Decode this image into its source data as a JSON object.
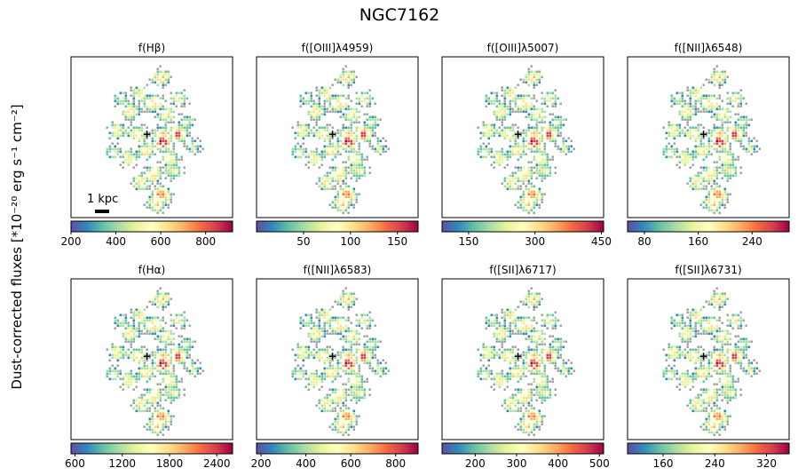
{
  "figure": {
    "title": "NGC7162",
    "ylabel": "Dust-corrected fluxes [*10⁻²⁰ erg s⁻¹ cm⁻²]",
    "scalebar_label": "1 kpc",
    "center_marker": "+"
  },
  "chart_data": [
    {
      "type": "heatmap",
      "title": "f(Hβ)",
      "colormap": "Spectral_r",
      "clim": [
        200,
        920
      ],
      "ticks": [
        200,
        400,
        600,
        800
      ],
      "tick_labels": [
        "200",
        "400",
        "600",
        "800"
      ]
    },
    {
      "type": "heatmap",
      "title": "f([OIII]λ4959)",
      "colormap": "Spectral_r",
      "clim": [
        0,
        172
      ],
      "ticks": [
        50,
        100,
        150
      ],
      "tick_labels": [
        "50",
        "100",
        "150"
      ]
    },
    {
      "type": "heatmap",
      "title": "f([OIII]λ5007)",
      "colormap": "Spectral_r",
      "clim": [
        90,
        455
      ],
      "ticks": [
        150,
        300,
        450
      ],
      "tick_labels": [
        "150",
        "300",
        "450"
      ]
    },
    {
      "type": "heatmap",
      "title": "f([NII]λ6548)",
      "colormap": "Spectral_r",
      "clim": [
        55,
        295
      ],
      "ticks": [
        80,
        160,
        240
      ],
      "tick_labels": [
        "80",
        "160",
        "240"
      ]
    },
    {
      "type": "heatmap",
      "title": "f(Hα)",
      "colormap": "Spectral_r",
      "clim": [
        550,
        2600
      ],
      "ticks": [
        600,
        1200,
        1800,
        2400
      ],
      "tick_labels": [
        "600",
        "1200",
        "1800",
        "2400"
      ]
    },
    {
      "type": "heatmap",
      "title": "f([NII]λ6583)",
      "colormap": "Spectral_r",
      "clim": [
        180,
        900
      ],
      "ticks": [
        200,
        400,
        600,
        800
      ],
      "tick_labels": [
        "200",
        "400",
        "600",
        "800"
      ]
    },
    {
      "type": "heatmap",
      "title": "f([SII]λ6717)",
      "colormap": "Spectral_r",
      "clim": [
        120,
        510
      ],
      "ticks": [
        200,
        300,
        400,
        500
      ],
      "tick_labels": [
        "200",
        "300",
        "400",
        "500"
      ]
    },
    {
      "type": "heatmap",
      "title": "f([SII]λ6731)",
      "colormap": "Spectral_r",
      "clim": [
        105,
        355
      ],
      "ticks": [
        160,
        240,
        320
      ],
      "tick_labels": [
        "160",
        "240",
        "320"
      ]
    }
  ]
}
